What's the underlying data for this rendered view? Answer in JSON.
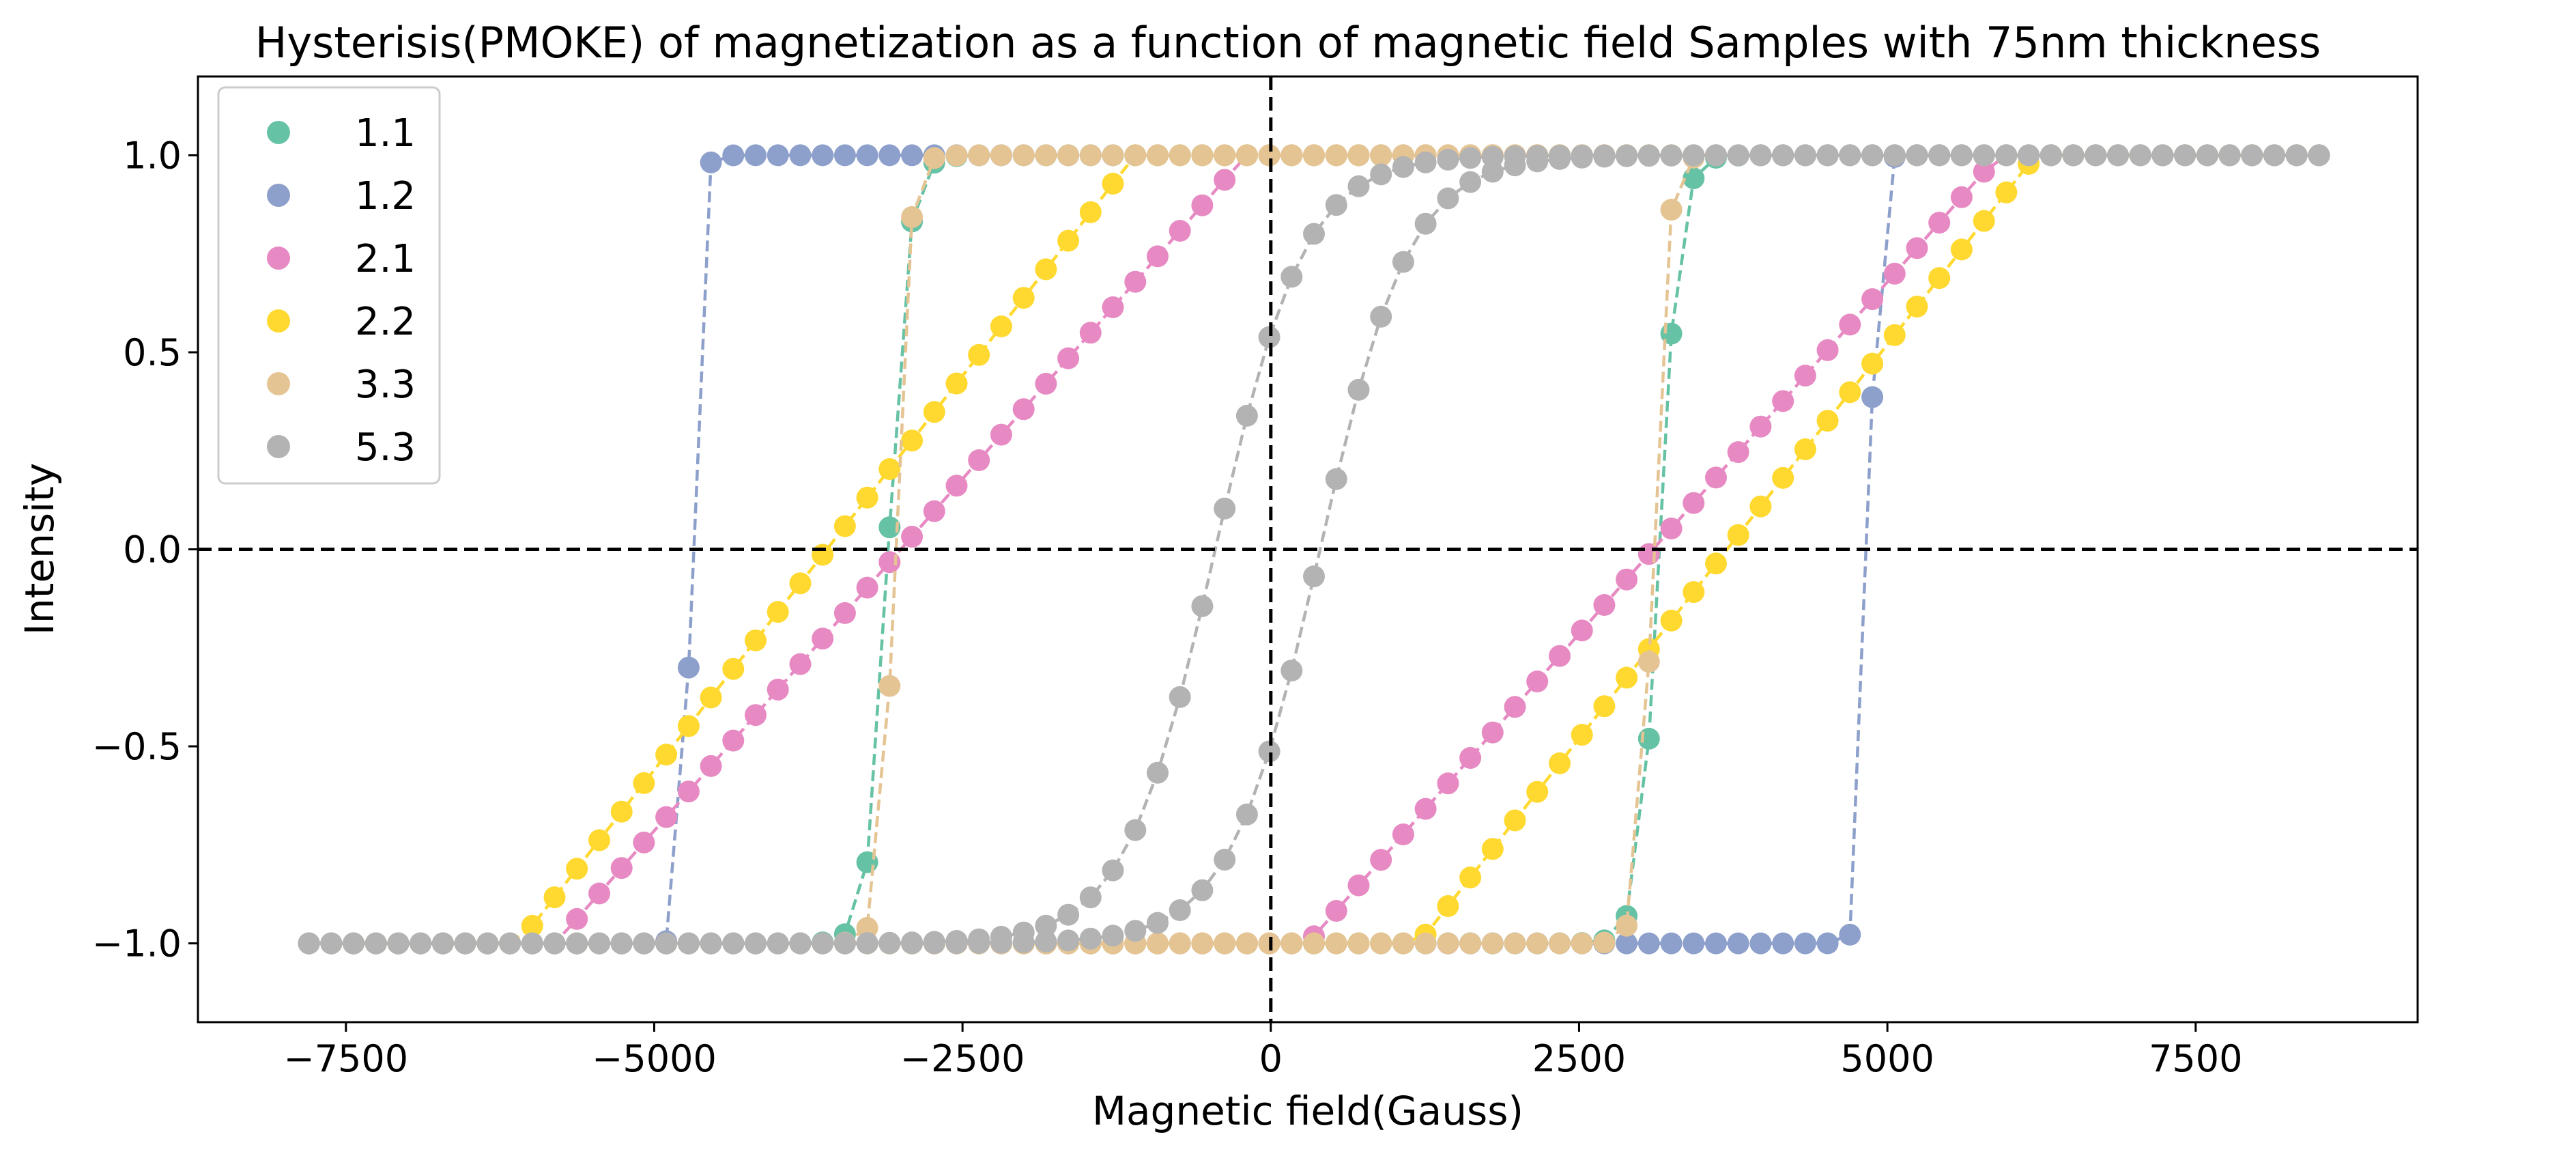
{
  "chart_data": {
    "type": "scatter",
    "title": "Hysterisis(PMOKE) of magnetization as a function of magnetic field Samples with 75nm thickness",
    "xlabel": "Magnetic field(Gauss)",
    "ylabel": "Intensity",
    "xlim": [
      -8700,
      9300
    ],
    "ylim": [
      -1.2,
      1.2
    ],
    "xticks": [
      -7500,
      -5000,
      -2500,
      0,
      2500,
      5000,
      7500
    ],
    "xtick_labels": [
      "−7500",
      "−5000",
      "−2500",
      "0",
      "2500",
      "5000",
      "7500"
    ],
    "yticks": [
      1.0,
      0.5,
      0.0,
      -0.5,
      -1.0
    ],
    "ytick_labels": [
      "1.0",
      "0.5",
      "0.0",
      "−0.5",
      "−1.0"
    ],
    "grid": false,
    "legend_position": "top-left",
    "reference_lines": {
      "x": 0,
      "y": 0,
      "style": "dashed",
      "color": "#000000"
    },
    "series": [
      {
        "name": "1.1",
        "color": "#66c2a5",
        "sweep_down": {
          "from": 8500,
          "to": -7800,
          "coercive_field": -3100,
          "transition_width": 350,
          "shape": "sigmoid"
        },
        "sweep_up": {
          "from": -7800,
          "to": 8500,
          "coercive_field": 3150,
          "transition_width": 350,
          "shape": "sigmoid"
        }
      },
      {
        "name": "1.2",
        "color": "#8da0cb",
        "sweep_down": {
          "from": 8500,
          "to": -7800,
          "coercive_field": -4700,
          "transition_width": 150,
          "shape": "sigmoid"
        },
        "sweep_up": {
          "from": -7800,
          "to": 8500,
          "coercive_field": 4850,
          "transition_width": 150,
          "shape": "sigmoid"
        }
      },
      {
        "name": "2.1",
        "color": "#e78ac3",
        "sweep_down": {
          "from": 8500,
          "to": -7800,
          "coercive_field": -3000,
          "transition_width": 2800,
          "shape": "linear"
        },
        "sweep_up": {
          "from": -7800,
          "to": 8500,
          "coercive_field": 3100,
          "transition_width": 2800,
          "shape": "linear"
        }
      },
      {
        "name": "2.2",
        "color": "#ffd92f",
        "sweep_down": {
          "from": 8500,
          "to": -7800,
          "coercive_field": -3600,
          "transition_width": 2500,
          "shape": "linear"
        },
        "sweep_up": {
          "from": -7800,
          "to": 8500,
          "coercive_field": 3700,
          "transition_width": 2500,
          "shape": "linear"
        }
      },
      {
        "name": "3.3",
        "color": "#e5c494",
        "sweep_down": {
          "from": 8500,
          "to": -7800,
          "coercive_field": -3050,
          "transition_width": 250,
          "shape": "sigmoid"
        },
        "sweep_up": {
          "from": -7800,
          "to": 8500,
          "coercive_field": 3100,
          "transition_width": 250,
          "shape": "sigmoid"
        }
      },
      {
        "name": "5.3",
        "color": "#b3b3b3",
        "sweep_down": {
          "from": 8500,
          "to": -7800,
          "coercive_field": -450,
          "transition_width": 1600,
          "shape": "sigmoid"
        },
        "sweep_up": {
          "from": -7800,
          "to": 8500,
          "coercive_field": 400,
          "transition_width": 1600,
          "shape": "sigmoid"
        }
      }
    ]
  }
}
